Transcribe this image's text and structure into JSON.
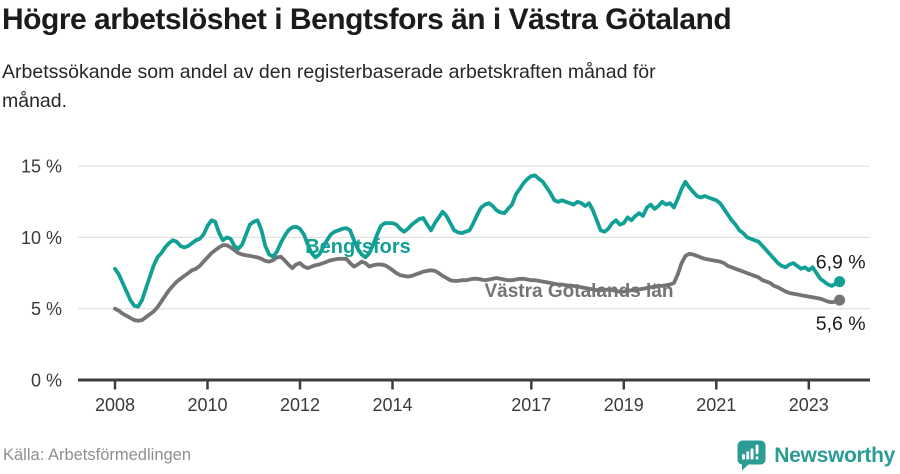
{
  "header": {
    "title": "Högre arbetslöshet i Bengtsfors än i Västra Götaland",
    "subtitle": "Arbetssökande som andel av den registerbaserade arbetskraften månad för\nmånad."
  },
  "chart_data": {
    "type": "line",
    "title": "Högre arbetslöshet i Bengtsfors än i Västra Götaland",
    "xlabel": "",
    "ylabel": "Arbetssökande som andel av den registerbaserade arbetskraften",
    "grid": true,
    "ylim": [
      0,
      15.5
    ],
    "x_start": {
      "year": 2008,
      "month": 1
    },
    "frequency": "monthly",
    "y_ticks": [
      0,
      5,
      10,
      15
    ],
    "y_tick_labels": [
      "0 %",
      "5 %",
      "10 %",
      "15 %"
    ],
    "x_ticks": [
      2008,
      2010,
      2012,
      2014,
      2017,
      2019,
      2021,
      2023
    ],
    "x_tick_labels": [
      "2008",
      "2010",
      "2012",
      "2014",
      "2017",
      "2019",
      "2021",
      "2023"
    ],
    "series": [
      {
        "name": "Bengtsfors",
        "color": "#12a096",
        "end_label": "6,9 %",
        "end_value": 6.9,
        "values": [
          7.8,
          7.4,
          6.8,
          6.2,
          5.6,
          5.2,
          5.15,
          5.6,
          6.4,
          7.2,
          8.0,
          8.6,
          8.9,
          9.3,
          9.6,
          9.8,
          9.7,
          9.4,
          9.3,
          9.4,
          9.6,
          9.8,
          9.9,
          10.2,
          10.8,
          11.2,
          11.1,
          10.3,
          9.8,
          10.0,
          9.9,
          9.4,
          9.2,
          9.5,
          10.2,
          10.9,
          11.1,
          11.2,
          10.5,
          9.4,
          8.8,
          8.65,
          9.0,
          9.6,
          10.1,
          10.5,
          10.7,
          10.75,
          10.6,
          10.2,
          9.5,
          8.9,
          8.6,
          8.8,
          9.3,
          9.8,
          10.2,
          10.4,
          10.5,
          10.6,
          10.65,
          10.5,
          9.8,
          9.2,
          8.8,
          8.6,
          8.9,
          9.5,
          10.2,
          10.8,
          11.0,
          11.0,
          11.0,
          10.9,
          10.6,
          10.4,
          10.6,
          10.9,
          11.1,
          11.3,
          11.35,
          10.9,
          10.5,
          11.0,
          11.4,
          11.8,
          11.5,
          11.0,
          10.5,
          10.35,
          10.3,
          10.4,
          10.5,
          11.0,
          11.6,
          12.1,
          12.3,
          12.4,
          12.2,
          11.9,
          11.75,
          11.7,
          12.0,
          12.3,
          13.0,
          13.4,
          13.8,
          14.1,
          14.3,
          14.35,
          14.1,
          13.9,
          13.5,
          13.1,
          12.6,
          12.5,
          12.6,
          12.5,
          12.4,
          12.3,
          12.5,
          12.4,
          12.2,
          12.4,
          11.9,
          11.2,
          10.5,
          10.4,
          10.6,
          11.0,
          11.2,
          10.9,
          11.0,
          11.4,
          11.2,
          11.5,
          11.7,
          11.5,
          12.1,
          12.3,
          12.0,
          12.2,
          12.5,
          12.3,
          12.4,
          12.1,
          12.7,
          13.4,
          13.9,
          13.5,
          13.2,
          12.9,
          12.8,
          12.9,
          12.8,
          12.7,
          12.6,
          12.4,
          12.0,
          11.6,
          11.2,
          10.9,
          10.5,
          10.3,
          10.0,
          9.9,
          9.8,
          9.7,
          9.4,
          9.1,
          8.8,
          8.5,
          8.2,
          8.0,
          7.9,
          8.1,
          8.2,
          8.0,
          7.8,
          7.9,
          7.7,
          7.9,
          7.5,
          7.1,
          6.9,
          6.7,
          6.6,
          6.75,
          6.9
        ]
      },
      {
        "name": "Västra Götalands län",
        "color": "#747474",
        "end_label": "5,6 %",
        "end_value": 5.6,
        "values": [
          5.0,
          4.85,
          4.65,
          4.5,
          4.35,
          4.2,
          4.15,
          4.2,
          4.4,
          4.6,
          4.8,
          5.1,
          5.5,
          5.9,
          6.3,
          6.6,
          6.9,
          7.1,
          7.3,
          7.5,
          7.7,
          7.8,
          8.0,
          8.3,
          8.6,
          8.9,
          9.1,
          9.3,
          9.45,
          9.45,
          9.3,
          9.1,
          8.9,
          8.8,
          8.75,
          8.7,
          8.65,
          8.6,
          8.5,
          8.35,
          8.3,
          8.4,
          8.6,
          8.65,
          8.4,
          8.1,
          7.85,
          8.1,
          8.2,
          7.95,
          7.85,
          7.95,
          8.05,
          8.1,
          8.2,
          8.3,
          8.4,
          8.45,
          8.5,
          8.5,
          8.5,
          8.2,
          7.95,
          8.1,
          8.3,
          8.2,
          7.95,
          8.05,
          8.1,
          8.1,
          8.05,
          7.9,
          7.7,
          7.5,
          7.35,
          7.3,
          7.25,
          7.3,
          7.4,
          7.5,
          7.6,
          7.65,
          7.7,
          7.65,
          7.5,
          7.3,
          7.15,
          7.0,
          6.95,
          6.95,
          7.0,
          7.0,
          7.05,
          7.1,
          7.1,
          7.05,
          7.0,
          7.05,
          7.1,
          7.15,
          7.1,
          7.05,
          7.0,
          7.0,
          7.05,
          7.1,
          7.1,
          7.05,
          7.0,
          7.0,
          6.95,
          6.9,
          6.85,
          6.8,
          6.75,
          6.7,
          6.7,
          6.65,
          6.6,
          6.6,
          6.55,
          6.5,
          6.45,
          6.4,
          6.35,
          6.3,
          6.3,
          6.3,
          6.35,
          6.3,
          6.25,
          6.2,
          6.2,
          6.25,
          6.3,
          6.3,
          6.35,
          6.4,
          6.45,
          6.5,
          6.55,
          6.6,
          6.6,
          6.65,
          6.7,
          6.8,
          7.4,
          8.2,
          8.7,
          8.85,
          8.8,
          8.7,
          8.6,
          8.5,
          8.45,
          8.4,
          8.35,
          8.3,
          8.2,
          8.0,
          7.9,
          7.8,
          7.7,
          7.6,
          7.5,
          7.4,
          7.3,
          7.2,
          7.0,
          6.9,
          6.8,
          6.6,
          6.5,
          6.35,
          6.2,
          6.1,
          6.05,
          6.0,
          5.95,
          5.9,
          5.85,
          5.8,
          5.75,
          5.7,
          5.6,
          5.5,
          5.45,
          5.5,
          5.6
        ]
      }
    ],
    "legend_position": "inline-labels"
  },
  "footer": {
    "source": "Källa: Arbetsförmedlingen",
    "brand": "Newsworthy"
  },
  "colors": {
    "accent_teal": "#12a096",
    "series_gray": "#747474",
    "grid": "#dcdcdc",
    "axis": "#3d3d3d",
    "brand_teal": "#2b9c94"
  }
}
